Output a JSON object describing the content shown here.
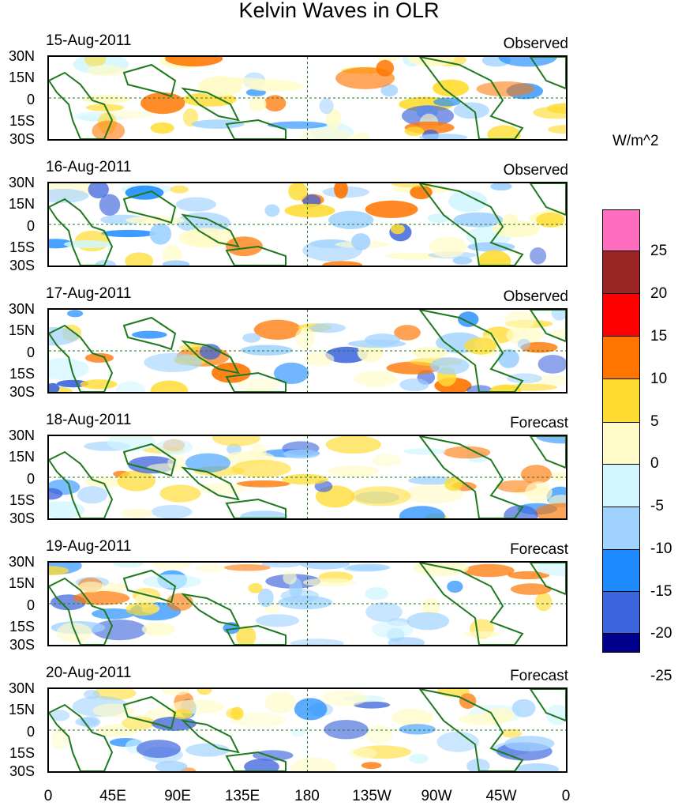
{
  "title": "Kelvin Waves in OLR",
  "panels": [
    {
      "date": "15-Aug-2011",
      "status": "Observed"
    },
    {
      "date": "16-Aug-2011",
      "status": "Observed"
    },
    {
      "date": "17-Aug-2011",
      "status": "Observed"
    },
    {
      "date": "18-Aug-2011",
      "status": "Forecast"
    },
    {
      "date": "19-Aug-2011",
      "status": "Forecast"
    },
    {
      "date": "20-Aug-2011",
      "status": "Forecast"
    }
  ],
  "lat_labels": [
    "30N",
    "15N",
    "0",
    "15S",
    "30S"
  ],
  "lon_labels": [
    "0",
    "45E",
    "90E",
    "135E",
    "180",
    "135W",
    "90W",
    "45W",
    "0"
  ],
  "units": "W/m^2",
  "colorbar": {
    "labels": [
      "25",
      "20",
      "15",
      "10",
      "5",
      "0",
      "-5",
      "-10",
      "-15",
      "-20",
      "-25"
    ],
    "colors": [
      "#ff6ebe",
      "#9b2424",
      "#ff0000",
      "#ff7500",
      "#ffdc32",
      "#fffbc8",
      "#d2f6ff",
      "#a0d2ff",
      "#1e8cff",
      "#3c64dc",
      "#00008c",
      "#8c32ff"
    ]
  },
  "colors": {
    "land": "#1f7a1f",
    "positive": "#ffdc32",
    "negative": "#a0d2ff"
  }
}
